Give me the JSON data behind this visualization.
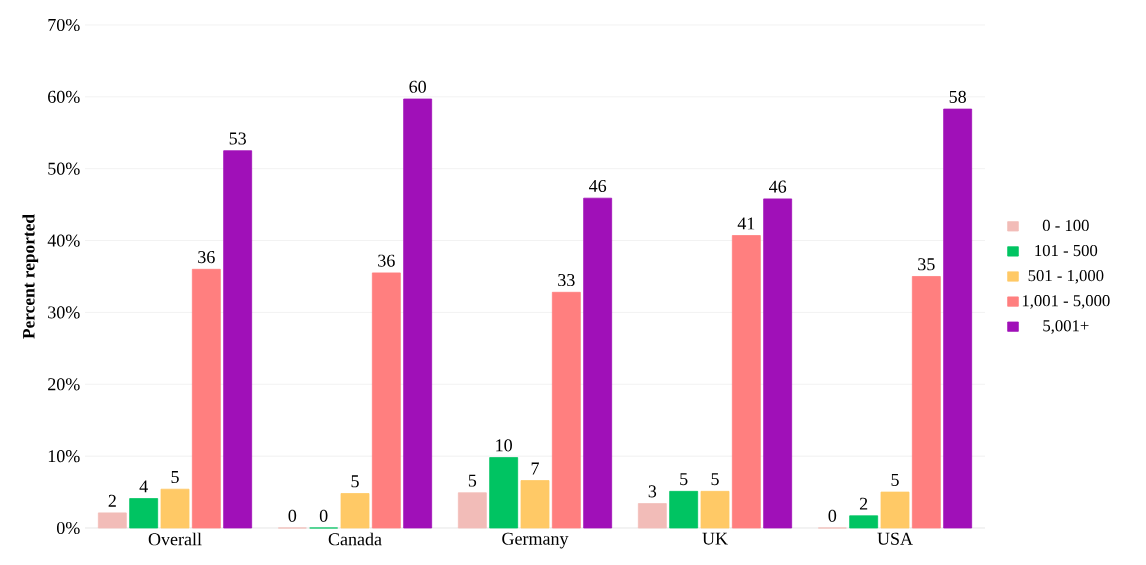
{
  "chart_data": {
    "type": "bar",
    "ylabel": "Percent reported",
    "categories": [
      "Overall",
      "Canada",
      "Germany",
      "UK",
      "USA"
    ],
    "series": [
      {
        "name": "0 - 100",
        "color": "#f2bcb8",
        "values": [
          2.1,
          0,
          4.9,
          3.4,
          0
        ],
        "value_labels": [
          "2",
          "0",
          "5",
          "3",
          "0"
        ]
      },
      {
        "name": "101 - 500",
        "color": "#00c462",
        "values": [
          4.1,
          0,
          9.8,
          5.1,
          1.7
        ],
        "value_labels": [
          "4",
          "0",
          "10",
          "5",
          "2"
        ]
      },
      {
        "name": "501 - 1,000",
        "color": "#ffc966",
        "values": [
          5.4,
          4.8,
          6.6,
          5.1,
          5.0
        ],
        "value_labels": [
          "5",
          "5",
          "7",
          "5",
          "5"
        ]
      },
      {
        "name": "1,001 - 5,000",
        "color": "#ff7f7f",
        "values": [
          36.0,
          35.5,
          32.8,
          40.7,
          35.0
        ],
        "value_labels": [
          "36",
          "36",
          "33",
          "41",
          "35"
        ]
      },
      {
        "name": "5,001+",
        "color": "#a010b8",
        "values": [
          52.5,
          59.7,
          45.9,
          45.8,
          58.3
        ],
        "value_labels": [
          "53",
          "60",
          "46",
          "46",
          "58"
        ]
      }
    ],
    "ylim": [
      0,
      70
    ],
    "yticks": [
      {
        "value": 0,
        "label": "0%"
      },
      {
        "value": 10,
        "label": "10%"
      },
      {
        "value": 20,
        "label": "20%"
      },
      {
        "value": 30,
        "label": "30%"
      },
      {
        "value": 40,
        "label": "40%"
      },
      {
        "value": 50,
        "label": "50%"
      },
      {
        "value": 60,
        "label": "60%"
      },
      {
        "value": 70,
        "label": "70%"
      }
    ],
    "grid": "y",
    "legend": "right"
  }
}
